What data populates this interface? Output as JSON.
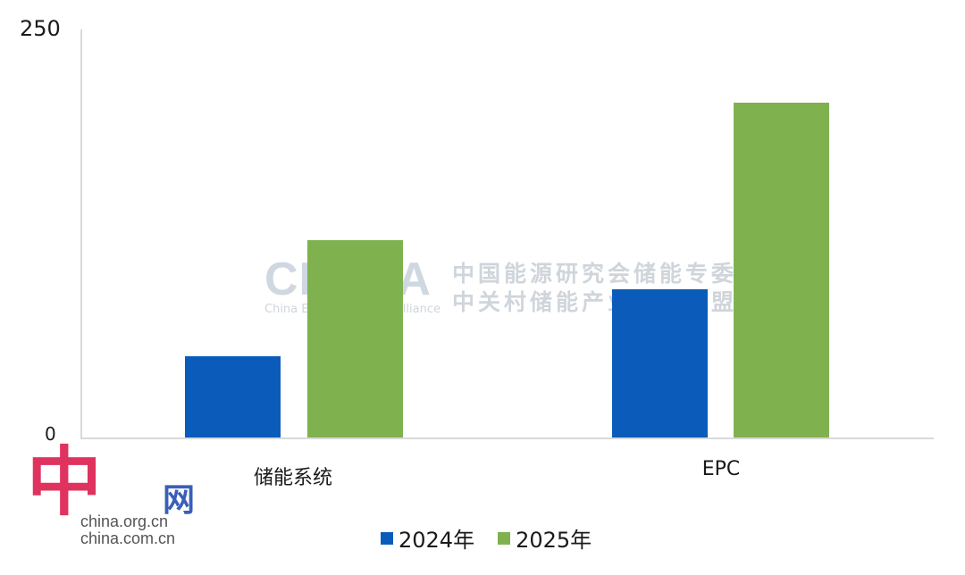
{
  "chart_data": {
    "type": "bar",
    "title": "",
    "xlabel": "",
    "ylabel": "",
    "categories": [
      "储能系统",
      "EPC"
    ],
    "series": [
      {
        "name": "2024年",
        "color": "#0b5cba",
        "values": [
          50,
          91
        ]
      },
      {
        "name": "2025年",
        "color": "#7fb24f",
        "values": [
          121,
          205
        ]
      }
    ],
    "ylim": [
      0,
      250
    ],
    "yticks": [
      "0",
      "250"
    ],
    "grid": false,
    "legend_position": "bottom"
  },
  "axis": {
    "y_top": "250",
    "y_bottom": "0"
  },
  "categories": {
    "c0": "储能系统",
    "c1": "EPC"
  },
  "legend": {
    "s0": "2024年",
    "s1": "2025年"
  },
  "watermark": {
    "brand": "CNESA",
    "subtitle": "China Energy Storage Alliance",
    "line1": "中国能源研究会储能专委会",
    "line2": "中关村储能产业技术联盟"
  },
  "logo": {
    "char": "中",
    "wang": "网",
    "url1": "china.org.cn",
    "url2": "china.com.cn"
  }
}
